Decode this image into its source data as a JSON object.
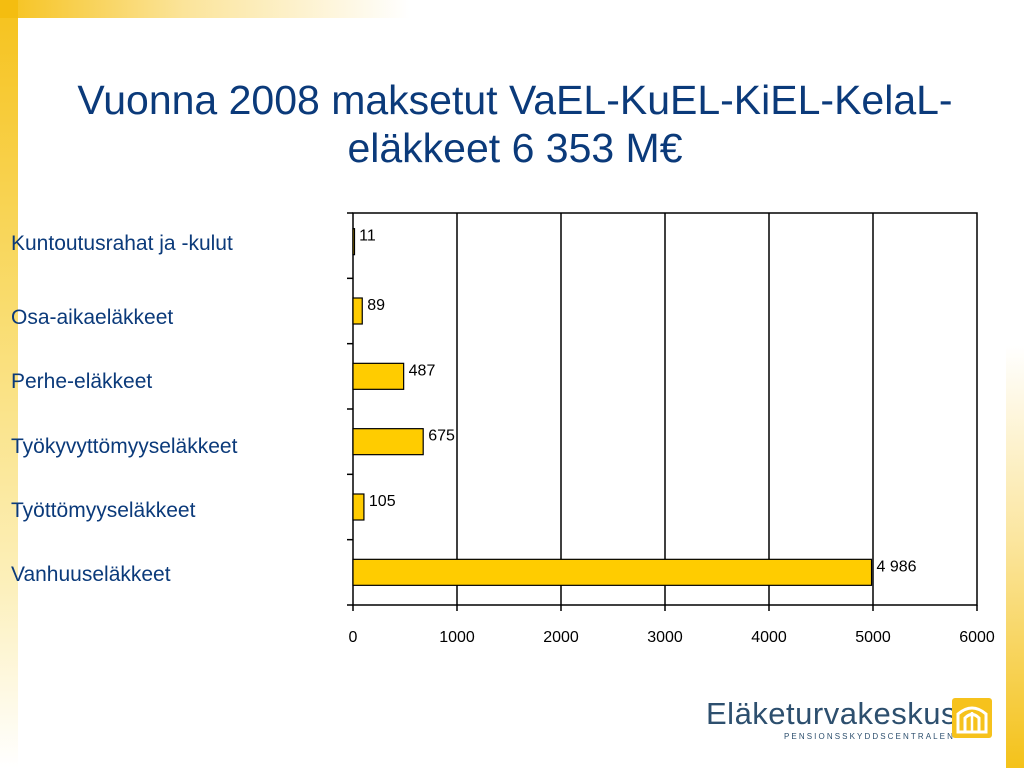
{
  "title": "Vuonna 2008 maksetut VaEL-KuEL-KiEL-KelaL-eläkkeet 6 353 M€",
  "logo": {
    "name": "Eläketurvakeskus",
    "subtitle": "PENSIONSSKYDDSCENTRALEN"
  },
  "chart_data": {
    "type": "bar",
    "orientation": "horizontal",
    "categories": [
      "Kuntoutusrahat ja -kulut",
      "Osa-aikaeläkkeet",
      "Perhe-eläkkeet",
      "Työkyvyttömyyseläkkeet",
      "Työttömyyseläkkeet",
      "Vanhuuseläkkeet"
    ],
    "values": [
      11,
      89,
      487,
      675,
      105,
      4986
    ],
    "data_labels": [
      "11",
      "89",
      "487",
      "675",
      "105",
      "4 986"
    ],
    "xlim": [
      0,
      6000
    ],
    "xticks": [
      0,
      1000,
      2000,
      3000,
      4000,
      5000,
      6000
    ],
    "xtick_labels": [
      "0",
      "1000",
      "2000",
      "3000",
      "4000",
      "5000",
      "6000"
    ],
    "grid": true,
    "bar_color": "#ffcc00",
    "bar_edge_color": "#000000",
    "title_color": "#0b3a7a",
    "accent_color": "#f6c21c"
  }
}
